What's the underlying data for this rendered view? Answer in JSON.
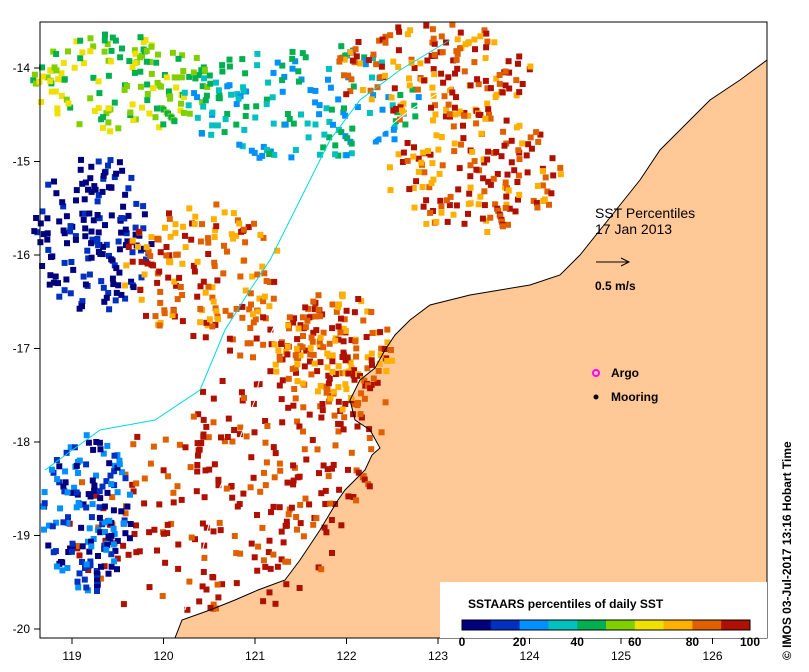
{
  "map": {
    "title": "SST Percentiles",
    "date": "17 Jan 2013",
    "lon_ticks": [
      "119",
      "120",
      "121",
      "122",
      "123",
      "124",
      "125",
      "126"
    ],
    "lat_ticks": [
      "-14",
      "-15",
      "-16",
      "-17",
      "-18",
      "-19",
      "-20"
    ],
    "lon_range": [
      118.6,
      126.7
    ],
    "lat_range": [
      -20.2,
      -13.4
    ],
    "land_color": "#ffc896",
    "ocean_color": "#ffffff",
    "coast_color": "#000000"
  },
  "velocity_scale": {
    "label": "0.5 m/s"
  },
  "legend": {
    "argo_label": "Argo",
    "argo_color": "#ff00ff",
    "mooring_label": "Mooring",
    "mooring_color": "#000000"
  },
  "colorbar": {
    "title": "SSTAARS percentiles of daily SST",
    "ticks": [
      "0",
      "20",
      "40",
      "60",
      "80",
      "100"
    ],
    "colors": [
      "#00007f",
      "#0030c0",
      "#0090ff",
      "#00c0c0",
      "#00b050",
      "#80d000",
      "#f0e000",
      "#ffb000",
      "#e06000",
      "#b01000"
    ]
  },
  "credit": "© IMOS 03-Jul-2017 13:16 Hobart Time"
}
